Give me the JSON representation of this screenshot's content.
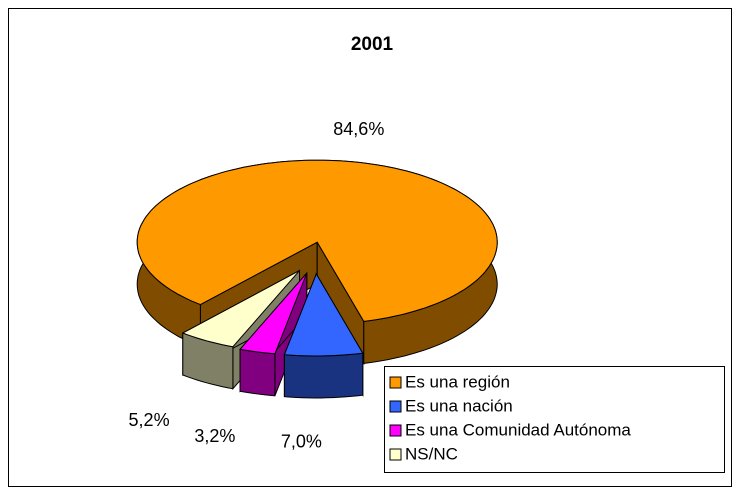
{
  "chart_data": {
    "type": "pie3d",
    "title": "2001",
    "categories": [
      "Es una región",
      "Es una nación",
      "Es una Comunidad Autónoma",
      "NS/NC"
    ],
    "values": [
      84.6,
      7.0,
      3.2,
      5.2
    ],
    "value_labels": [
      "84,6%",
      "7,0%",
      "3,2%",
      "5,2%"
    ],
    "colors": [
      "#ff9900",
      "#3366ff",
      "#ff00ff",
      "#ffffcc"
    ],
    "legend": "bottom-right"
  }
}
